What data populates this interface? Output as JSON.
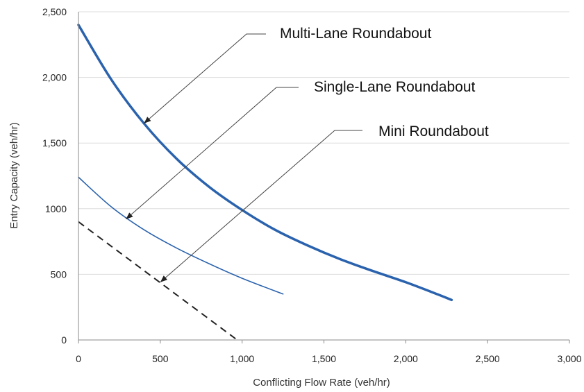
{
  "chart_data": {
    "type": "line",
    "title": "",
    "xlabel": "Conflicting Flow Rate (veh/hr)",
    "ylabel": "Entry Capacity (veh/hr)",
    "xlim": [
      0,
      3000
    ],
    "ylim": [
      0,
      2500
    ],
    "x_ticks": [
      "0",
      "500",
      "1,000",
      "1,500",
      "2,000",
      "2,500",
      "3,000"
    ],
    "y_ticks": [
      "0",
      "500",
      "1000",
      "1,500",
      "2,000",
      "2,500"
    ],
    "grid": "horizontal",
    "series": [
      {
        "name": "Multi-Lane Roundabout",
        "color": "#2a62ad",
        "style": "thick-solid",
        "x": [
          0,
          200,
          400,
          600,
          800,
          1000,
          1200,
          1400,
          1600,
          1800,
          2000,
          2200,
          2280
        ],
        "y": [
          2400,
          1985,
          1650,
          1380,
          1165,
          990,
          840,
          720,
          615,
          525,
          440,
          345,
          305
        ]
      },
      {
        "name": "Single-Lane Roundabout",
        "color": "#2a62ad",
        "style": "thin-solid",
        "x": [
          0,
          200,
          400,
          600,
          800,
          1000,
          1250
        ],
        "y": [
          1240,
          1015,
          840,
          700,
          580,
          470,
          350
        ]
      },
      {
        "name": "Mini Roundabout",
        "color": "#222222",
        "style": "dashed",
        "x": [
          0,
          970
        ],
        "y": [
          900,
          0
        ]
      }
    ],
    "annotations": [
      {
        "text": "Multi-Lane Roundabout",
        "target_x": 400,
        "target_y": 1650
      },
      {
        "text": "Single-Lane Roundabout",
        "target_x": 290,
        "target_y": 920
      },
      {
        "text": "Mini Roundabout",
        "target_x": 500,
        "target_y": 440
      }
    ]
  }
}
